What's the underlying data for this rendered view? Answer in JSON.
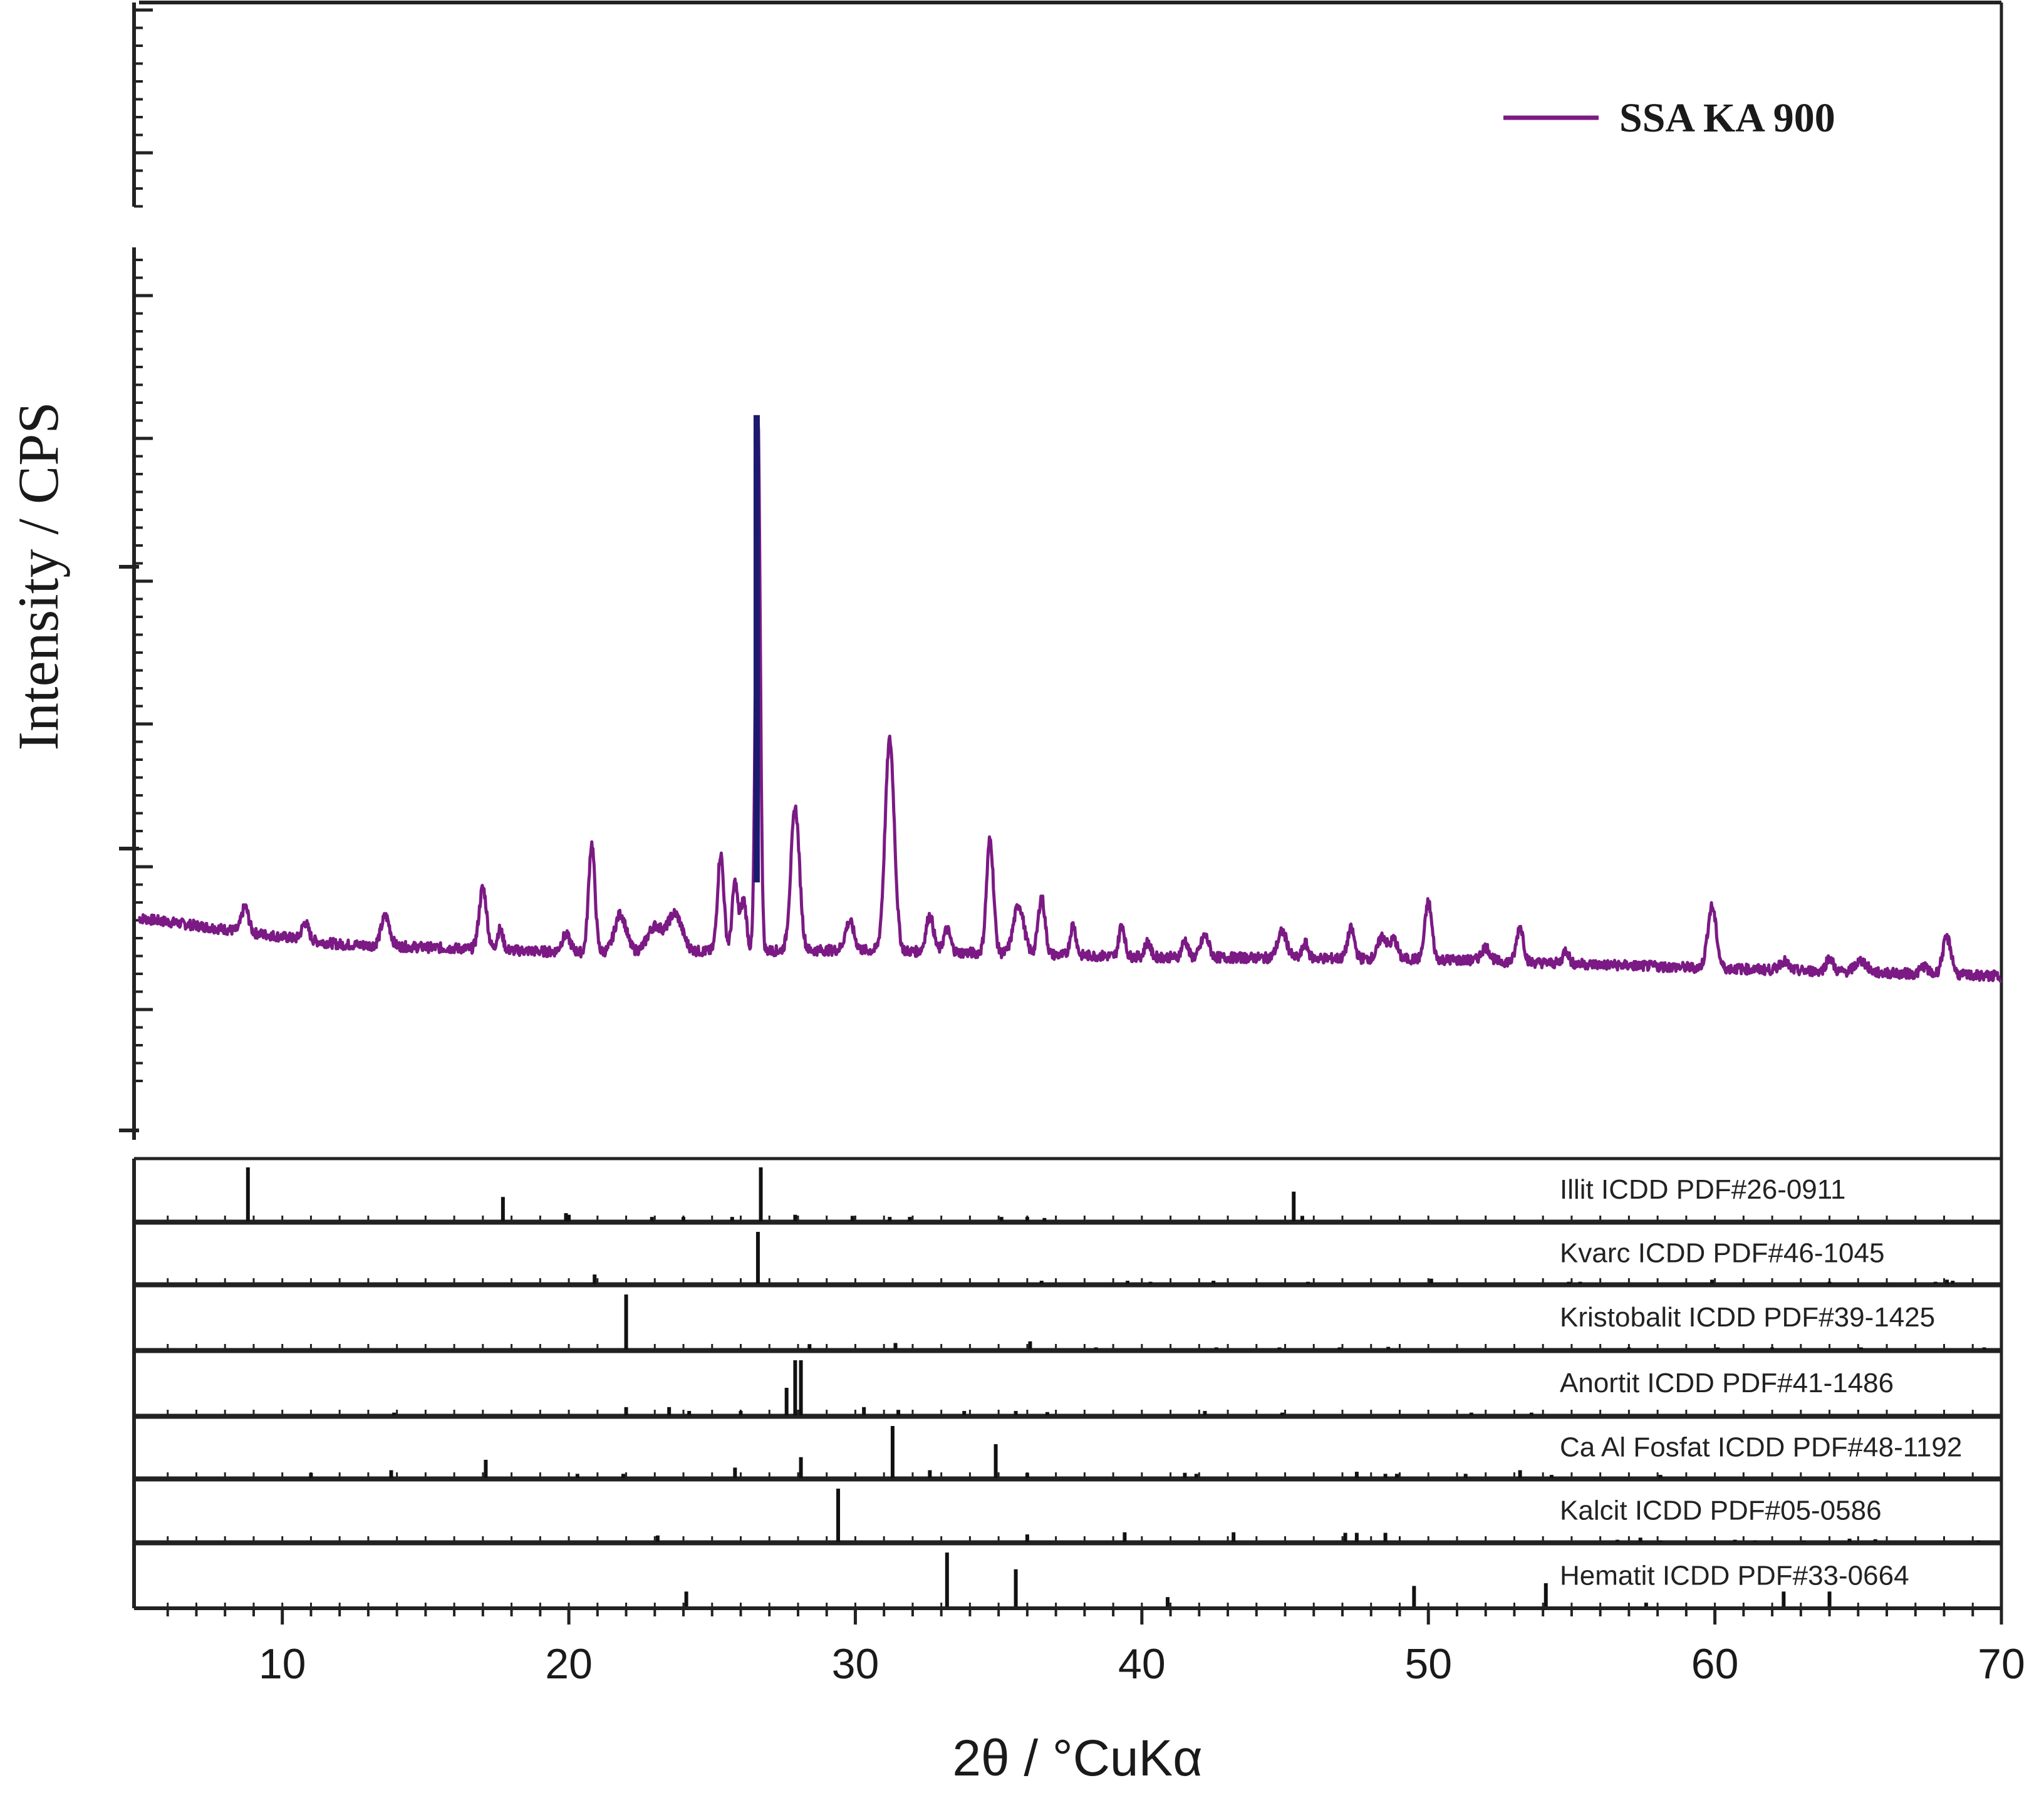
{
  "chart_data": {
    "type": "line",
    "xlabel": "2θ / °CuKα",
    "ylabel": "Intensity / CPS",
    "xlim": [
      5,
      70
    ],
    "ylim": [
      0,
      100
    ],
    "x_ticks": [
      10,
      20,
      30,
      40,
      50,
      60,
      70
    ],
    "x_tick_labels": [
      "10",
      "20",
      "30",
      "40",
      "50",
      "60",
      "70"
    ],
    "legend": "top-right",
    "colors": {
      "series": "#7b1a84",
      "main_peak": "#1c1a6e",
      "axis": "#222222"
    },
    "series": [
      {
        "name": "SSA KA 900",
        "baseline": [
          [
            5,
            20
          ],
          [
            12,
            17.7
          ],
          [
            20,
            17
          ],
          [
            30,
            17.2
          ],
          [
            40,
            16.6
          ],
          [
            50,
            16.4
          ],
          [
            60,
            15.6
          ],
          [
            70,
            14.9
          ]
        ],
        "peaks": [
          [
            8.7,
            2.2,
            0.12
          ],
          [
            10.8,
            1.5,
            0.12
          ],
          [
            13.6,
            2.6,
            0.15
          ],
          [
            17.0,
            5.4,
            0.13
          ],
          [
            17.6,
            1.8,
            0.1
          ],
          [
            19.9,
            1.5,
            0.15
          ],
          [
            20.8,
            9.5,
            0.11
          ],
          [
            21.8,
            3.3,
            0.2
          ],
          [
            23.0,
            2.2,
            0.25
          ],
          [
            23.7,
            3.3,
            0.25
          ],
          [
            25.3,
            8.5,
            0.11
          ],
          [
            25.8,
            6.0,
            0.1
          ],
          [
            26.1,
            4.5,
            0.1
          ],
          [
            26.6,
            47.0,
            0.08
          ],
          [
            27.9,
            12.5,
            0.15
          ],
          [
            29.8,
            2.5,
            0.15
          ],
          [
            31.2,
            18.5,
            0.16
          ],
          [
            32.6,
            3.2,
            0.13
          ],
          [
            33.2,
            2.0,
            0.12
          ],
          [
            34.7,
            10.0,
            0.12
          ],
          [
            35.7,
            4.3,
            0.18
          ],
          [
            36.5,
            5.0,
            0.12
          ],
          [
            37.6,
            2.7,
            0.1
          ],
          [
            39.3,
            2.8,
            0.1
          ],
          [
            40.2,
            1.3,
            0.1
          ],
          [
            41.5,
            1.5,
            0.1
          ],
          [
            42.2,
            1.9,
            0.14
          ],
          [
            44.9,
            2.3,
            0.16
          ],
          [
            45.7,
            1.3,
            0.1
          ],
          [
            47.3,
            2.6,
            0.12
          ],
          [
            48.4,
            2.0,
            0.15
          ],
          [
            48.8,
            1.7,
            0.12
          ],
          [
            50.0,
            5.0,
            0.12
          ],
          [
            52.0,
            1.2,
            0.15
          ],
          [
            53.2,
            3.1,
            0.12
          ],
          [
            54.8,
            1.2,
            0.1
          ],
          [
            59.9,
            5.4,
            0.15
          ],
          [
            62.4,
            0.8,
            0.15
          ],
          [
            64.0,
            1.2,
            0.12
          ],
          [
            65.1,
            1.0,
            0.2
          ],
          [
            67.3,
            0.7,
            0.12
          ],
          [
            68.1,
            3.2,
            0.15
          ]
        ]
      }
    ],
    "reference_patterns": [
      {
        "name": "Illit ICDD PDF#26-0911",
        "lines": [
          [
            8.8,
            100
          ],
          [
            17.7,
            45
          ],
          [
            19.9,
            15
          ],
          [
            20.0,
            12
          ],
          [
            22.9,
            8
          ],
          [
            24.0,
            8
          ],
          [
            25.7,
            8
          ],
          [
            26.7,
            100
          ],
          [
            27.9,
            12
          ],
          [
            29.9,
            10
          ],
          [
            31.2,
            8
          ],
          [
            31.9,
            8
          ],
          [
            35.1,
            8
          ],
          [
            36.0,
            8
          ],
          [
            36.6,
            6
          ],
          [
            45.3,
            55
          ],
          [
            45.6,
            10
          ]
        ]
      },
      {
        "name": "Kvarc ICDD PDF#46-1045",
        "lines": [
          [
            20.9,
            18
          ],
          [
            26.6,
            100
          ],
          [
            36.5,
            6
          ],
          [
            39.5,
            6
          ],
          [
            40.3,
            4
          ],
          [
            42.5,
            6
          ],
          [
            45.8,
            4
          ],
          [
            50.1,
            10
          ],
          [
            54.9,
            4
          ],
          [
            55.3,
            4
          ],
          [
            59.9,
            8
          ],
          [
            64.0,
            4
          ],
          [
            67.7,
            4
          ],
          [
            68.1,
            8
          ],
          [
            68.3,
            6
          ]
        ]
      },
      {
        "name": "Kristobalit ICDD PDF#39-1425",
        "lines": [
          [
            22.0,
            100
          ],
          [
            28.4,
            10
          ],
          [
            31.4,
            12
          ],
          [
            36.1,
            15
          ],
          [
            38.4,
            4
          ],
          [
            42.6,
            4
          ],
          [
            44.8,
            4
          ],
          [
            46.9,
            4
          ],
          [
            48.6,
            5
          ],
          [
            57.0,
            4
          ],
          [
            60.1,
            4
          ],
          [
            62.0,
            4
          ],
          [
            65.1,
            4
          ],
          [
            69.4,
            4
          ]
        ]
      },
      {
        "name": "Anortit ICDD PDF#41-1486",
        "lines": [
          [
            13.9,
            5
          ],
          [
            22.0,
            15
          ],
          [
            23.5,
            15
          ],
          [
            24.2,
            8
          ],
          [
            26.0,
            8
          ],
          [
            27.6,
            50
          ],
          [
            27.9,
            100
          ],
          [
            28.1,
            100
          ],
          [
            30.3,
            15
          ],
          [
            31.5,
            10
          ],
          [
            33.8,
            8
          ],
          [
            35.6,
            8
          ],
          [
            36.7,
            6
          ],
          [
            42.2,
            8
          ],
          [
            44.9,
            5
          ],
          [
            51.5,
            5
          ],
          [
            53.6,
            5
          ]
        ]
      },
      {
        "name": "Ca Al Fosfat ICDD PDF#48-1192",
        "lines": [
          [
            11.0,
            10
          ],
          [
            13.8,
            15
          ],
          [
            17.1,
            35
          ],
          [
            20.3,
            8
          ],
          [
            21.9,
            8
          ],
          [
            25.8,
            20
          ],
          [
            28.1,
            40
          ],
          [
            31.3,
            100
          ],
          [
            32.6,
            15
          ],
          [
            34.9,
            65
          ],
          [
            36.0,
            10
          ],
          [
            41.5,
            10
          ],
          [
            41.9,
            8
          ],
          [
            47.5,
            12
          ],
          [
            48.5,
            8
          ],
          [
            48.9,
            8
          ],
          [
            51.3,
            8
          ],
          [
            53.2,
            15
          ],
          [
            54.3,
            6
          ],
          [
            58.1,
            6
          ]
        ]
      },
      {
        "name": "Kalcit ICDD PDF#05-0586",
        "lines": [
          [
            23.1,
            12
          ],
          [
            29.4,
            100
          ],
          [
            36.0,
            14
          ],
          [
            39.4,
            18
          ],
          [
            43.2,
            18
          ],
          [
            47.1,
            17
          ],
          [
            47.5,
            17
          ],
          [
            48.5,
            17
          ],
          [
            56.6,
            4
          ],
          [
            57.4,
            8
          ],
          [
            58.1,
            3
          ],
          [
            60.7,
            4
          ],
          [
            61.4,
            3
          ],
          [
            63.1,
            3
          ],
          [
            64.7,
            6
          ],
          [
            65.6,
            5
          ],
          [
            69.2,
            3
          ]
        ]
      },
      {
        "name": "Hematit ICDD PDF#33-0664",
        "lines": [
          [
            24.1,
            30
          ],
          [
            33.2,
            100
          ],
          [
            35.6,
            70
          ],
          [
            40.9,
            20
          ],
          [
            43.5,
            3
          ],
          [
            49.5,
            40
          ],
          [
            54.1,
            45
          ],
          [
            57.6,
            10
          ],
          [
            62.4,
            30
          ],
          [
            64.0,
            30
          ]
        ]
      }
    ]
  }
}
